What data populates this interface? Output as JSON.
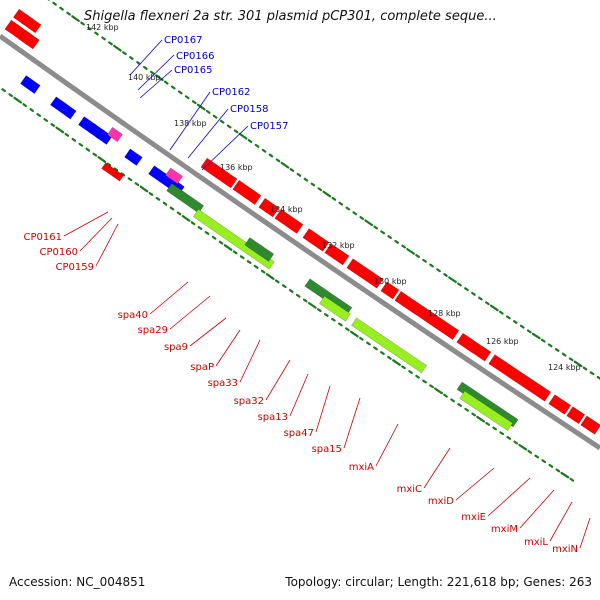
{
  "title": "Shigella flexneri 2a str. 301 plasmid pCP301, complete seque...",
  "accession": "Accession: NC_004851",
  "summary": "Topology: circular; Length: 221,618 bp; Genes: 263",
  "colors": {
    "backbone": "#8c8c8c",
    "forward_gene": "#ff0000",
    "reverse_gene": "#0000ff",
    "pink_gene": "#ff33aa",
    "cds_light": "#99ee22",
    "cds_dark": "#2f8a2f",
    "gc_dots": "#1a7a1a",
    "blue_label": "#0000cc",
    "red_label": "#cc0000"
  },
  "kbp_ticks": [
    "142 kbp",
    "140 kbp",
    "138 kbp",
    "136 kbp",
    "134 kbp",
    "132 kbp",
    "130 kbp",
    "128 kbp",
    "126 kbp",
    "124 kbp"
  ],
  "blue_labels": [
    "CP0167",
    "CP0166",
    "CP0165",
    "CP0162",
    "CP0158",
    "CP0157"
  ],
  "red_labels_top": [
    "CP0161",
    "CP0160",
    "CP0159"
  ],
  "red_labels_bottom": [
    "spa40",
    "spa29",
    "spa9",
    "spaP",
    "spa33",
    "spa32",
    "spa13",
    "spa47",
    "spa15",
    "mxiA",
    "mxiC",
    "mxiD",
    "mxiE",
    "mxiM",
    "mxiL",
    "mxiN"
  ]
}
